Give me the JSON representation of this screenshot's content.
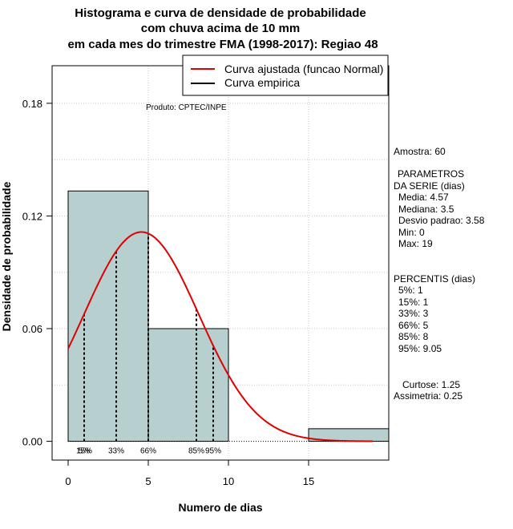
{
  "chart_data": {
    "type": "histogram",
    "title_lines": [
      "Histograma e curva de densidade de probabilidade",
      "com chuva acima de 10 mm",
      "em cada mes do trimestre FMA (1998-2017): Regiao 48"
    ],
    "xlabel": "Numero de dias",
    "ylabel": "Densidade de probabilidade",
    "xlim": [
      -1,
      20
    ],
    "ylim": [
      -0.01,
      0.2
    ],
    "x_ticks": [
      0,
      5,
      10,
      15
    ],
    "y_ticks": [
      0.0,
      0.06,
      0.12,
      0.18
    ],
    "x_tick_labels": [
      "0",
      "5",
      "10",
      "15"
    ],
    "y_tick_labels": [
      "0.00",
      "0.06",
      "0.12",
      "0.18"
    ],
    "bins": [
      {
        "start": 0,
        "end": 5,
        "density": 0.1333
      },
      {
        "start": 5,
        "end": 10,
        "density": 0.06
      },
      {
        "start": 10,
        "end": 15,
        "density": 0.0
      },
      {
        "start": 15,
        "end": 20,
        "density": 0.0067
      }
    ],
    "bar_color": "#b8cfcf",
    "normal_curve": {
      "mean": 4.57,
      "sd": 3.58,
      "x_range": [
        0,
        19
      ],
      "color": "#e00000"
    },
    "percentile_lines": [
      {
        "x": 1,
        "label": "5%"
      },
      {
        "x": 1,
        "label": "15%"
      },
      {
        "x": 3,
        "label": "33%"
      },
      {
        "x": 5,
        "label": "66%"
      },
      {
        "x": 8,
        "label": "85%"
      },
      {
        "x": 9.05,
        "label": "95%"
      }
    ],
    "legend": {
      "position": "top-right",
      "entries": [
        {
          "label": "Curva ajustada (funcao Normal)",
          "color": "#e00000"
        },
        {
          "label": "Curva empirica",
          "color": "#000000"
        }
      ]
    },
    "grid": true,
    "annotation": "Produto: CPTEC/INPE"
  },
  "stats_panel": {
    "sample": "Amostra: 60",
    "params_title_1": "PARAMETROS",
    "params_title_2": "DA SERIE (dias)",
    "media": "Media: 4.57",
    "mediana": "Mediana: 3.5",
    "desvio": "Desvio padrao: 3.58",
    "min": "Min: 0",
    "max": "Max: 19",
    "percentis_title": "PERCENTIS (dias)",
    "p5": "5%: 1",
    "p15": "15%: 1",
    "p33": "33%: 3",
    "p66": "66%: 5",
    "p85": "85%: 8",
    "p95": "95%: 9.05",
    "curtose": "Curtose: 1.25",
    "assimetria": "Assimetria: 0.25"
  }
}
